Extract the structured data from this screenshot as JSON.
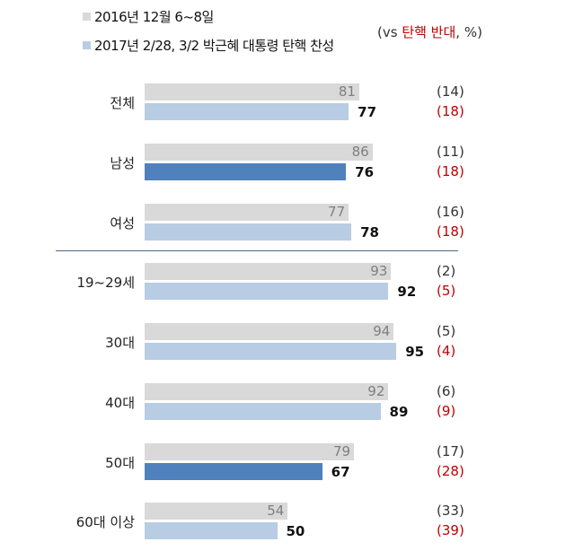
{
  "chart_data": {
    "type": "bar",
    "orientation": "horizontal",
    "legend": [
      {
        "name": "2016년 12월 6~8일",
        "color": "#d9d9d9"
      },
      {
        "name": "2017년 2/28, 3/2 박근혜 대통령 탄핵 찬성",
        "color": "#b8cce4"
      }
    ],
    "note": {
      "prefix": "(vs ",
      "highlight": "탄핵 반대",
      "suffix": ", %)"
    },
    "categories": [
      "전체",
      "남성",
      "여성",
      "19~29세",
      "30대",
      "40대",
      "50대",
      "60대 이상"
    ],
    "series": [
      {
        "name": "2016년 12월 6~8일",
        "values": [
          81,
          86,
          77,
          93,
          94,
          92,
          79,
          54
        ],
        "oppose": [
          "(14)",
          "(11)",
          "(16)",
          "(2)",
          "(5)",
          "(6)",
          "(17)",
          "(33)"
        ]
      },
      {
        "name": "2017년 2/28, 3/2 박근혜 대통령 탄핵 찬성",
        "values": [
          77,
          76,
          78,
          92,
          95,
          89,
          67,
          50
        ],
        "oppose": [
          "(18)",
          "(18)",
          "(18)",
          "(5)",
          "(4)",
          "(9)",
          "(28)",
          "(39)"
        ],
        "highlighted": [
          false,
          true,
          false,
          false,
          false,
          false,
          true,
          false
        ]
      }
    ],
    "xlim": [
      0,
      100
    ],
    "colors": {
      "gray": "#d9d9d9",
      "light_blue": "#b8cce4",
      "dark_blue": "#4f81bd"
    }
  }
}
